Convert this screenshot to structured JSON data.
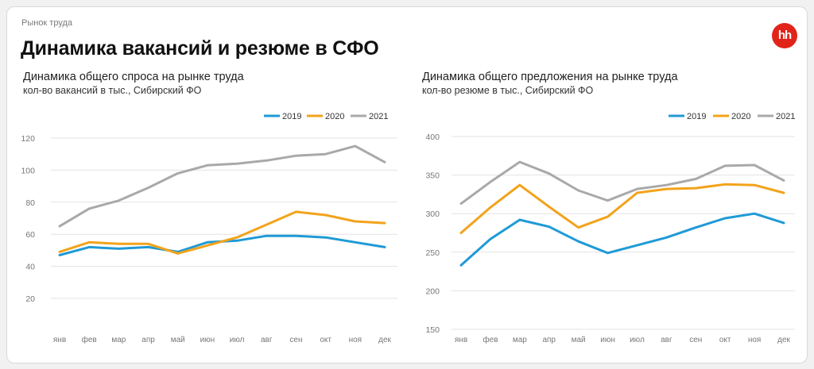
{
  "section_label": "Рынок труда",
  "title": "Динамика вакансий и резюме в СФО",
  "logo_text": "hh",
  "colors": {
    "s2019": "#1f9ad6",
    "s2020": "#f2a31b",
    "s2021": "#a9a9a9",
    "brand": "#e2231a"
  },
  "chart_data": [
    {
      "type": "line",
      "title": "Динамика общего спроса на рынке труда",
      "subtitle": "кол-во вакансий в тыс., Сибирский ФО",
      "categories": [
        "янв",
        "фев",
        "мар",
        "апр",
        "май",
        "июн",
        "июл",
        "авг",
        "сен",
        "окт",
        "ноя",
        "дек"
      ],
      "yticks": [
        20,
        40,
        60,
        80,
        100,
        120
      ],
      "ylim": [
        10,
        125
      ],
      "grid": true,
      "legend": "top-right",
      "series": [
        {
          "name": "2019",
          "values": [
            47,
            52,
            51,
            52,
            49,
            55,
            56,
            59,
            59,
            58,
            55,
            52
          ]
        },
        {
          "name": "2020",
          "values": [
            49,
            55,
            54,
            54,
            48,
            53,
            58,
            66,
            74,
            72,
            68,
            67
          ]
        },
        {
          "name": "2021",
          "values": [
            65,
            76,
            81,
            89,
            98,
            103,
            104,
            106,
            109,
            110,
            115,
            105
          ]
        }
      ]
    },
    {
      "type": "line",
      "title": "Динамика общего предложения на рынке труда",
      "subtitle": "кол-во резюме в тыс., Сибирский ФО",
      "categories": [
        "янв",
        "фев",
        "мар",
        "апр",
        "май",
        "июн",
        "июл",
        "авг",
        "сен",
        "окт",
        "ноя",
        "дек"
      ],
      "yticks": [
        150,
        200,
        250,
        300,
        350,
        400
      ],
      "ylim": [
        150,
        400
      ],
      "grid": true,
      "legend": "top-right",
      "series": [
        {
          "name": "2019",
          "values": [
            233,
            267,
            292,
            283,
            264,
            249,
            259,
            269,
            282,
            294,
            300,
            288
          ]
        },
        {
          "name": "2020",
          "values": [
            275,
            308,
            337,
            309,
            282,
            296,
            327,
            332,
            333,
            338,
            337,
            327
          ]
        },
        {
          "name": "2021",
          "values": [
            313,
            341,
            367,
            352,
            330,
            317,
            332,
            337,
            345,
            362,
            363,
            343
          ]
        }
      ]
    }
  ]
}
